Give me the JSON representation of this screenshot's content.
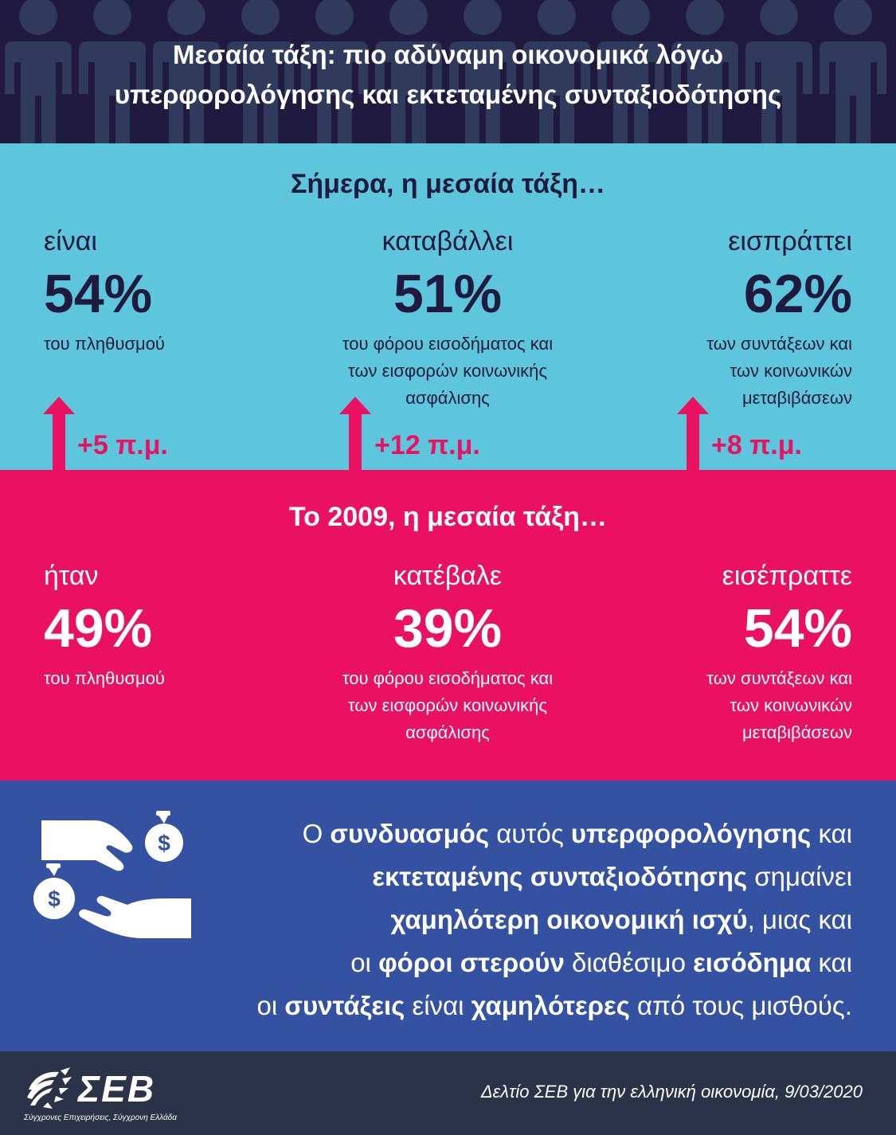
{
  "header": {
    "title_line1": "Μεσαία τάξη: πιο αδύναμη οικονομικά λόγω",
    "title_line2": "υπερφορολόγησης και εκτεταμένης συνταξιοδότησης"
  },
  "today": {
    "heading": "Σήμερα, η μεσαία τάξη…",
    "stats": [
      {
        "verb": "είναι",
        "value": "54%",
        "desc": [
          "του πληθυσμού"
        ],
        "change": "+5 π.μ."
      },
      {
        "verb": "καταβάλλει",
        "value": "51%",
        "desc": [
          "του φόρου εισοδήματος και",
          "των εισφορών κοινωνικής",
          "ασφάλισης"
        ],
        "change": "+12 π.μ."
      },
      {
        "verb": "εισπράττει",
        "value": "62%",
        "desc": [
          "των συντάξεων και",
          "των κοινωνικών",
          "μεταβιβάσεων"
        ],
        "change": "+8 π.μ."
      }
    ]
  },
  "y2009": {
    "heading": "Το 2009, η μεσαία τάξη…",
    "stats": [
      {
        "verb": "ήταν",
        "value": "49%",
        "desc": [
          "του πληθυσμού"
        ]
      },
      {
        "verb": "κατέβαλε",
        "value": "39%",
        "desc": [
          "του φόρου εισοδήματος και",
          "των εισφορών κοινωνικής",
          "ασφάλισης"
        ]
      },
      {
        "verb": "εισέπραττε",
        "value": "54%",
        "desc": [
          "των συντάξεων και",
          "των κοινωνικών",
          "μεταβιβάσεων"
        ]
      }
    ]
  },
  "conclusion": {
    "icon": "hands-money-icon",
    "line1": [
      {
        "t": "Ο ",
        "b": false
      },
      {
        "t": "συνδυασμός",
        "b": true
      },
      {
        "t": " αυτός ",
        "b": false
      },
      {
        "t": "υπερφορολόγησης",
        "b": true
      },
      {
        "t": " και",
        "b": false
      }
    ],
    "line2": [
      {
        "t": "εκτεταμένης συνταξιοδότησης",
        "b": true
      },
      {
        "t": " σημαίνει",
        "b": false
      }
    ],
    "line3": [
      {
        "t": "χαμηλότερη οικονομική ισχύ",
        "b": true
      },
      {
        "t": ", μιας και",
        "b": false
      }
    ],
    "line4": [
      {
        "t": "οι ",
        "b": false
      },
      {
        "t": "φόροι στερούν",
        "b": true
      },
      {
        "t": " διαθέσιμο ",
        "b": false
      },
      {
        "t": "εισόδημα",
        "b": true
      },
      {
        "t": " και",
        "b": false
      }
    ],
    "line5": [
      {
        "t": "οι ",
        "b": false
      },
      {
        "t": "συντάξεις",
        "b": true
      },
      {
        "t": " είναι ",
        "b": false
      },
      {
        "t": "χαμηλότερες",
        "b": true
      },
      {
        "t": " από τους μισθούς.",
        "b": false
      }
    ]
  },
  "footer": {
    "logo_text": "ΣΕΒ",
    "logo_tagline": "Σύγχρονες Επιχειρήσεις, Σύγχρονη Ελλάδα",
    "source": "Δελτίο ΣΕΒ για την ελληνική οικονομία, 9/03/2020"
  },
  "colors": {
    "navy": "#1f1a3e",
    "cyan": "#5ec6dc",
    "magenta": "#ea1163",
    "blue": "#3451a2",
    "footer": "#2b3348"
  }
}
